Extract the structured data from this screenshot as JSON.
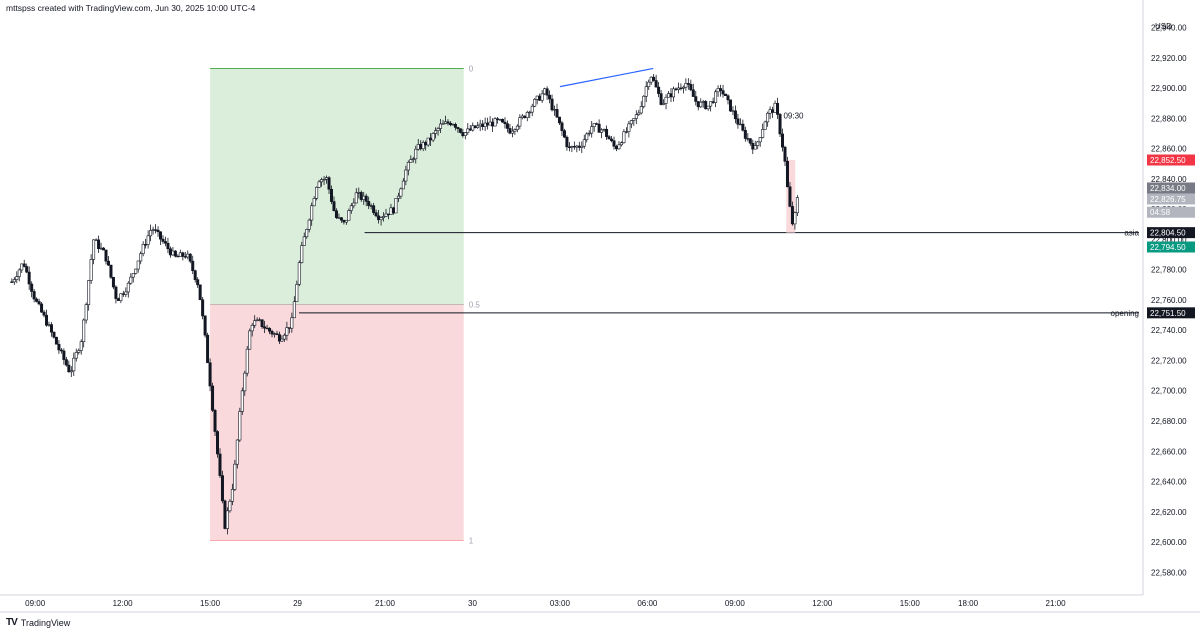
{
  "header": {
    "caption": "mttspss created with TradingView.com, Jun 30, 2025 10:00 UTC-4"
  },
  "footer": {
    "brand": "TradingView",
    "logo_icon": "tradingview-logo-icon"
  },
  "colors": {
    "candle": "#131722",
    "fib_upper_fill": "#dbeedb",
    "fib_upper_line": "#4caf50",
    "fib_lower_fill": "#f9d9dc",
    "fib_lower_line": "#f7a8ae",
    "trendline": "#2962ff",
    "price_red": "#f23645",
    "price_gray": "#787b86",
    "price_black": "#131722",
    "price_teal": "#089981"
  },
  "chart_data": {
    "type": "candlestick",
    "currency": "USD",
    "y_ticks": [
      22580,
      22600,
      22620,
      22640,
      22660,
      22680,
      22700,
      22720,
      22740,
      22760,
      22780,
      22800,
      22820,
      22840,
      22860,
      22880,
      22900,
      22920,
      22940
    ],
    "y_tick_labels": [
      "22,580.00",
      "22,600.00",
      "22,620.00",
      "22,640.00",
      "22,660.00",
      "22,680.00",
      "22,700.00",
      "22,720.00",
      "22,740.00",
      "22,760.00",
      "22,780.00",
      "22,800.00",
      "22,820.00",
      "22,840.00",
      "22,860.00",
      "22,880.00",
      "22,900.00",
      "22,920.00",
      "22,940.00"
    ],
    "ylim": [
      22565,
      22949
    ],
    "x_ticks": [
      {
        "label": "09:00",
        "h": 9
      },
      {
        "label": "12:00",
        "h": 12
      },
      {
        "label": "15:00",
        "h": 15
      },
      {
        "label": "29",
        "h": 18
      },
      {
        "label": "21:00",
        "h": 21
      },
      {
        "label": "30",
        "h": 24
      },
      {
        "label": "03:00",
        "h": 27
      },
      {
        "label": "06:00",
        "h": 30
      },
      {
        "label": "09:00",
        "h": 33
      },
      {
        "label": "12:00",
        "h": 36
      },
      {
        "label": "15:00",
        "h": 39
      },
      {
        "label": "18:00",
        "h": 41
      },
      {
        "label": "21:00",
        "h": 44
      }
    ],
    "x_unit": "hours since Jun 27 00:00 (trading session axis)",
    "anchor_points": [
      [
        8.2,
        22772
      ],
      [
        8.6,
        22785
      ],
      [
        9.0,
        22760
      ],
      [
        9.4,
        22745
      ],
      [
        9.8,
        22728
      ],
      [
        10.2,
        22712
      ],
      [
        10.6,
        22735
      ],
      [
        11.0,
        22800
      ],
      [
        11.4,
        22790
      ],
      [
        11.8,
        22760
      ],
      [
        12.2,
        22770
      ],
      [
        12.6,
        22790
      ],
      [
        13.0,
        22808
      ],
      [
        13.4,
        22798
      ],
      [
        13.8,
        22788
      ],
      [
        14.2,
        22790
      ],
      [
        14.6,
        22770
      ],
      [
        14.8,
        22740
      ],
      [
        15.0,
        22705
      ],
      [
        15.3,
        22650
      ],
      [
        15.5,
        22610
      ],
      [
        15.8,
        22640
      ],
      [
        16.1,
        22700
      ],
      [
        16.4,
        22745
      ],
      [
        16.7,
        22745
      ],
      [
        17.0,
        22740
      ],
      [
        17.4,
        22735
      ],
      [
        17.8,
        22745
      ],
      [
        18.1,
        22790
      ],
      [
        18.4,
        22815
      ],
      [
        18.7,
        22840
      ],
      [
        19.0,
        22840
      ],
      [
        19.3,
        22815
      ],
      [
        19.6,
        22810
      ],
      [
        20.0,
        22830
      ],
      [
        20.4,
        22825
      ],
      [
        20.8,
        22815
      ],
      [
        21.3,
        22820
      ],
      [
        21.7,
        22845
      ],
      [
        22.1,
        22860
      ],
      [
        22.5,
        22865
      ],
      [
        22.9,
        22875
      ],
      [
        23.3,
        22878
      ],
      [
        23.7,
        22870
      ],
      [
        24.1,
        22874
      ],
      [
        24.5,
        22876
      ],
      [
        24.9,
        22878
      ],
      [
        25.3,
        22872
      ],
      [
        25.7,
        22880
      ],
      [
        26.1,
        22890
      ],
      [
        26.5,
        22898
      ],
      [
        26.9,
        22880
      ],
      [
        27.3,
        22860
      ],
      [
        27.7,
        22862
      ],
      [
        28.1,
        22875
      ],
      [
        28.5,
        22872
      ],
      [
        28.9,
        22860
      ],
      [
        29.3,
        22872
      ],
      [
        29.7,
        22884
      ],
      [
        30.1,
        22910
      ],
      [
        30.5,
        22890
      ],
      [
        30.9,
        22898
      ],
      [
        31.3,
        22904
      ],
      [
        31.7,
        22890
      ],
      [
        32.1,
        22888
      ],
      [
        32.5,
        22900
      ],
      [
        32.9,
        22885
      ],
      [
        33.3,
        22870
      ],
      [
        33.7,
        22860
      ],
      [
        34.1,
        22882
      ],
      [
        34.4,
        22888
      ],
      [
        34.7,
        22855
      ],
      [
        34.85,
        22825
      ],
      [
        35.0,
        22808
      ],
      [
        35.15,
        22827
      ]
    ],
    "fib_retracement": {
      "x_start": 15.0,
      "x_end": 23.7,
      "levels": [
        {
          "ratio_label": "0",
          "price": 22913
        },
        {
          "ratio_label": "0.5",
          "price": 22757
        },
        {
          "ratio_label": "1",
          "price": 22601
        }
      ]
    },
    "trendline": {
      "x1": 27.0,
      "y1": 22901,
      "x2": 30.2,
      "y2": 22913
    },
    "horizontal_lines": [
      {
        "label": "asia",
        "price": 22804.5,
        "price_label": "22,804.50",
        "x_start": 20.3
      },
      {
        "label": "opening",
        "price": 22751.5,
        "price_label": "22,751.50",
        "x_start": 18.05
      }
    ],
    "annotation_time": {
      "text": "09:30",
      "x": 34.6,
      "price": 22882
    },
    "current_candle_highlight": {
      "x": 34.9,
      "top": 22852.5,
      "bottom": 22804.5
    },
    "price_labels": [
      {
        "text": "22,852.50",
        "price": 22852.5,
        "color": "red"
      },
      {
        "text": "22,834.00",
        "price": 22834,
        "color": "gray"
      },
      {
        "text": "22,826.75",
        "price": 22826.75,
        "color": "lightgray"
      },
      {
        "text": "04:58",
        "price": 22818,
        "color": "lightgray"
      },
      {
        "text": "22,804.50",
        "price": 22804.5,
        "color": "black"
      },
      {
        "text": "22,794.50",
        "price": 22795,
        "color": "teal"
      },
      {
        "text": "22,751.50",
        "price": 22751.5,
        "color": "black"
      }
    ]
  }
}
